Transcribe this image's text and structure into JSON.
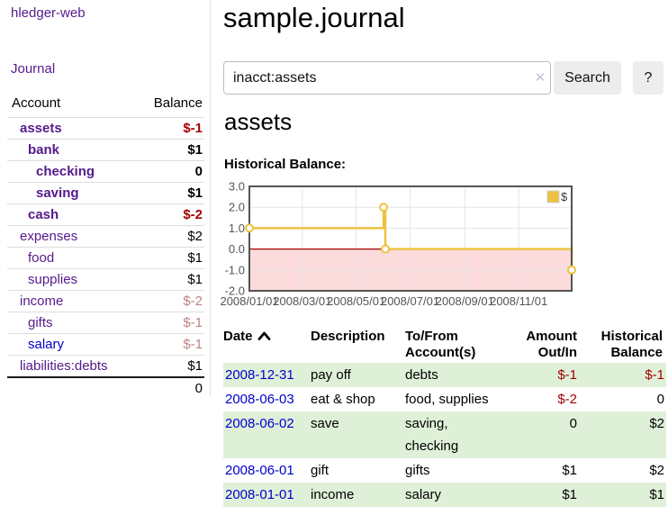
{
  "app": {
    "brand": "hledger-web"
  },
  "colors": {
    "link_purple": "#551a8b",
    "link_blue": "#0000cc",
    "negative_strong": "#a40000",
    "negative_soft": "#bc8383",
    "row_green": "#dff0d8",
    "button_bg": "#ededed",
    "divider": "#dddddd",
    "chart_line": "#edc240",
    "chart_negative_fill": "#fbdbdb",
    "chart_zero_line": "#a40000",
    "chart_border": "#545454",
    "chart_grid": "#e5e5e5",
    "chart_tick_text": "#545454"
  },
  "sidebar": {
    "nav_journal": "Journal",
    "accounts_table": {
      "headers": [
        "Account",
        "Balance"
      ],
      "rows": [
        {
          "account": "assets",
          "balance": "$-1",
          "indent": 1,
          "emph": true,
          "neg": "strong"
        },
        {
          "account": "bank",
          "balance": "$1",
          "indent": 2,
          "emph": true,
          "neg": ""
        },
        {
          "account": "checking",
          "balance": "0",
          "indent": 3,
          "emph": true,
          "neg": ""
        },
        {
          "account": "saving",
          "balance": "$1",
          "indent": 3,
          "emph": true,
          "neg": ""
        },
        {
          "account": "cash",
          "balance": "$-2",
          "indent": 2,
          "emph": true,
          "neg": "strong"
        },
        {
          "account": "expenses",
          "balance": "$2",
          "indent": 1,
          "emph": false,
          "neg": ""
        },
        {
          "account": "food",
          "balance": "$1",
          "indent": 2,
          "emph": false,
          "neg": ""
        },
        {
          "account": "supplies",
          "balance": "$1",
          "indent": 2,
          "emph": false,
          "neg": ""
        },
        {
          "account": "income",
          "balance": "$-2",
          "indent": 1,
          "emph": false,
          "neg": "soft"
        },
        {
          "account": "gifts",
          "balance": "$-1",
          "indent": 2,
          "emph": false,
          "neg": "soft"
        },
        {
          "account": "salary",
          "balance": "$-1",
          "indent": 2,
          "emph": false,
          "neg": "soft",
          "link_color": "blue"
        },
        {
          "account": "liabilities:debts",
          "balance": "$1",
          "indent": 1,
          "emph": false,
          "neg": ""
        }
      ],
      "total": "0"
    }
  },
  "main": {
    "title": "sample.journal",
    "search": {
      "value": "inacct:assets",
      "clear_icon": "✕",
      "button_label": "Search",
      "help_label": "?"
    },
    "account_heading": "assets",
    "register": {
      "headers": [
        "Date",
        "Description",
        "To/From Account(s)",
        "Amount Out/In",
        "Historical Balance"
      ],
      "rows": [
        {
          "date": "2008-12-31",
          "description": "pay off",
          "accounts": "debts",
          "amount": "$-1",
          "amount_neg": true,
          "balance": "$-1",
          "balance_neg": true
        },
        {
          "date": "2008-06-03",
          "description": "eat & shop",
          "accounts": "food, supplies",
          "amount": "$-2",
          "amount_neg": true,
          "balance": "0",
          "balance_neg": false
        },
        {
          "date": "2008-06-02",
          "description": "save",
          "accounts": "saving,\nchecking",
          "amount": "0",
          "amount_neg": false,
          "balance": "$2",
          "balance_neg": false
        },
        {
          "date": "2008-06-01",
          "description": "gift",
          "accounts": "gifts",
          "amount": "$1",
          "amount_neg": false,
          "balance": "$2",
          "balance_neg": false
        },
        {
          "date": "2008-01-01",
          "description": "income",
          "accounts": "salary",
          "amount": "$1",
          "amount_neg": false,
          "balance": "$1",
          "balance_neg": false
        }
      ]
    }
  },
  "chart_data": {
    "type": "line",
    "step": true,
    "title": "Historical Balance:",
    "series": [
      {
        "name": "$",
        "color": "#edc240",
        "points": [
          [
            "2008-01-01",
            1.0
          ],
          [
            "2008-06-01",
            2.0
          ],
          [
            "2008-06-03",
            0.0
          ],
          [
            "2008-12-31",
            -1.0
          ]
        ]
      }
    ],
    "x_range": [
      "2008-01-01",
      "2008-12-31"
    ],
    "ylim": [
      -2.0,
      3.0
    ],
    "yticks": [
      3.0,
      2.0,
      1.0,
      0.0,
      -1.0,
      -2.0
    ],
    "ytick_labels": [
      "3.0",
      "2.0",
      "1.0",
      "0.0",
      "-1.0",
      "-2.0"
    ],
    "xtick_labels": [
      "2008/01/01",
      "2008/03/01",
      "2008/05/01",
      "2008/07/01",
      "2008/09/01",
      "2008/11/01"
    ],
    "grid": true,
    "legend": "$",
    "legend_position": "top-right",
    "negative_region_shaded_below": 0.0
  }
}
